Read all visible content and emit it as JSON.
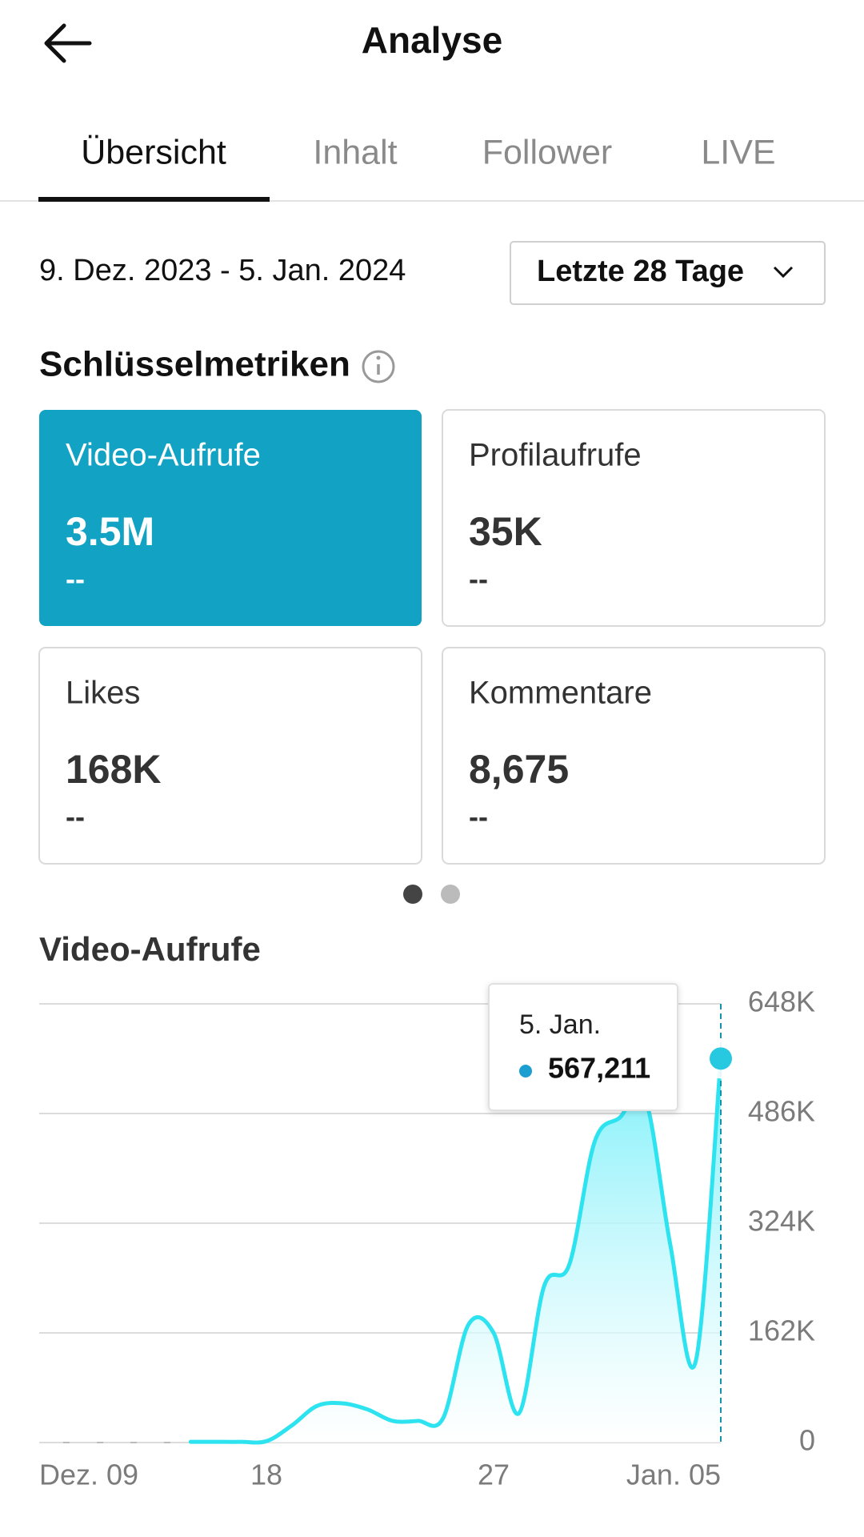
{
  "header": {
    "title": "Analyse"
  },
  "tabs": [
    "Übersicht",
    "Inhalt",
    "Follower",
    "LIVE"
  ],
  "date_range": "9. Dez. 2023 - 5. Jan. 2024",
  "period_selector": "Letzte 28 Tage",
  "section_title": "Schlüsselmetriken",
  "cards": [
    {
      "label": "Video-Aufrufe",
      "value": "3.5M",
      "change": "--"
    },
    {
      "label": "Profilaufrufe",
      "value": "35K",
      "change": "--"
    },
    {
      "label": "Likes",
      "value": "168K",
      "change": "--"
    },
    {
      "label": "Kommentare",
      "value": "8,675",
      "change": "--"
    }
  ],
  "chart_data": {
    "type": "area",
    "title": "Video-Aufrufe",
    "categories": [
      "Dez. 09",
      null,
      null,
      null,
      null,
      null,
      null,
      null,
      null,
      "18",
      null,
      null,
      null,
      null,
      null,
      null,
      null,
      null,
      "27",
      null,
      null,
      null,
      null,
      null,
      null,
      null,
      null,
      "Jan. 05"
    ],
    "series": [
      {
        "name": "Video-Aufrufe",
        "color": "#2ee3f0",
        "values": [
          null,
          null,
          null,
          null,
          null,
          null,
          1000,
          1000,
          1000,
          2000,
          25000,
          54000,
          58000,
          49000,
          32000,
          32000,
          36000,
          174000,
          162000,
          43000,
          231000,
          263000,
          444000,
          480000,
          509000,
          292000,
          119000,
          567211
        ],
        "value_labels": [
          null,
          null,
          null,
          null,
          null,
          null,
          null,
          null,
          null,
          null,
          null,
          null,
          null,
          null,
          null,
          null,
          null,
          null,
          null,
          null,
          null,
          null,
          null,
          null,
          null,
          null,
          null,
          "567,211"
        ]
      }
    ],
    "tooltip_title": "5. Jan.",
    "ylim": [
      0,
      648000
    ],
    "yticks": [
      0,
      {
        "value": 162000,
        "label": "162K"
      },
      {
        "value": 324000,
        "label": "324K"
      },
      {
        "value": 486000,
        "label": "486K"
      },
      {
        "value": 648000,
        "label": "648K"
      }
    ],
    "grid": true
  }
}
